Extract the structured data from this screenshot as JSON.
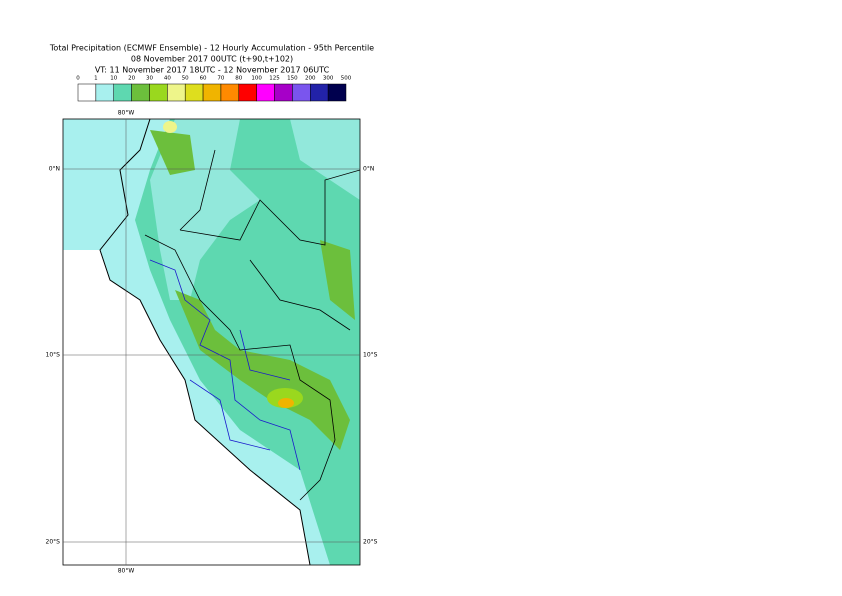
{
  "header": {
    "title": "Total Precipitation (ECMWF Ensemble) - 12 Hourly Accumulation - 95th Percentile",
    "base_time": "08 November 2017 00UTC (t+90,t+102)",
    "valid_time": "VT: 11 November 2017 18UTC - 12 November 2017 06UTC"
  },
  "legend": {
    "thresholds": [
      0,
      1,
      10,
      20,
      30,
      40,
      50,
      60,
      70,
      80,
      100,
      125,
      150,
      200,
      300,
      500
    ],
    "colors": [
      "#ffffff",
      "#a8f0ee",
      "#5ed8b0",
      "#6cbf3c",
      "#9ad81e",
      "#eef58a",
      "#dede1e",
      "#f0b400",
      "#ff8a00",
      "#ff0000",
      "#ff00ff",
      "#a600c8",
      "#7a55ee",
      "#2222a8",
      "#00004e"
    ]
  },
  "map": {
    "latitudes": [
      "0°N",
      "10°S",
      "20°S"
    ],
    "longitudes": [
      "80°W"
    ]
  }
}
